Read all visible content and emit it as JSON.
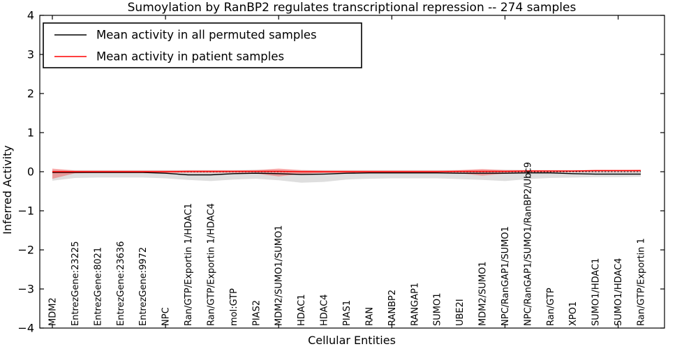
{
  "figure": {
    "title": "Sumoylation by RanBP2 regulates transcriptional repression -- 274 samples",
    "xlabel": "Cellular Entities",
    "ylabel": "Inferred Activity"
  },
  "chart_data": {
    "type": "line",
    "title": "Sumoylation by RanBP2 regulates transcriptional repression -- 274 samples",
    "xlabel": "Cellular Entities",
    "ylabel": "Inferred Activity",
    "ylim": [
      -4,
      4
    ],
    "yticks": [
      4,
      3,
      2,
      1,
      0,
      -1,
      -2,
      -3,
      -4
    ],
    "ytick_labels": [
      "4",
      "3",
      "2",
      "1",
      "0",
      "−1",
      "−2",
      "−3",
      "−4"
    ],
    "xtick_index": [
      0,
      5,
      10,
      15,
      20,
      25
    ],
    "grid": false,
    "legend_position": "upper left",
    "zero_reference_line": 0,
    "categories": [
      "MDM2",
      "EntrezGene:23225",
      "EntrezGene:8021",
      "EntrezGene:23636",
      "EntrezGene:9972",
      "NPC",
      "Ran/GTP/Exportin 1/HDAC1",
      "Ran/GTP/Exportin 1/HDAC4",
      "mol:GTP",
      "PIAS2",
      "MDM2/SUMO1/SUMO1",
      "HDAC1",
      "HDAC4",
      "PIAS1",
      "RAN",
      "RANBP2",
      "RANGAP1",
      "SUMO1",
      "UBE2I",
      "MDM2/SUMO1",
      "NPC/RanGAP1/SUMO1",
      "NPC/RanGAP1/SUMO1/RanBP2/Ubc9",
      "Ran/GTP",
      "XPO1",
      "SUMO1/HDAC1",
      "SUMO1/HDAC4",
      "Ran/GTP/Exportin 1"
    ],
    "series": [
      {
        "name": "Mean activity in all permuted samples",
        "color": "#000000",
        "line_style": "solid",
        "values": [
          -0.02,
          -0.02,
          -0.02,
          -0.02,
          -0.02,
          -0.04,
          -0.08,
          -0.08,
          -0.05,
          -0.04,
          -0.05,
          -0.07,
          -0.06,
          -0.04,
          -0.03,
          -0.03,
          -0.03,
          -0.03,
          -0.04,
          -0.04,
          -0.04,
          -0.03,
          -0.03,
          -0.05,
          -0.06,
          -0.06,
          -0.06
        ],
        "band": {
          "color": "rgba(0,0,0,0.13)",
          "upper": [
            0.05,
            0.04,
            0.04,
            0.04,
            0.04,
            0.04,
            0.04,
            0.04,
            0.04,
            0.05,
            0.05,
            0.04,
            0.04,
            0.04,
            0.04,
            0.04,
            0.04,
            0.04,
            0.04,
            0.05,
            0.05,
            0.04,
            0.04,
            0.04,
            0.04,
            0.04,
            0.04
          ],
          "lower": [
            -0.23,
            -0.16,
            -0.15,
            -0.15,
            -0.15,
            -0.17,
            -0.21,
            -0.24,
            -0.2,
            -0.18,
            -0.22,
            -0.28,
            -0.26,
            -0.2,
            -0.18,
            -0.17,
            -0.17,
            -0.17,
            -0.19,
            -0.21,
            -0.24,
            -0.19,
            -0.16,
            -0.15,
            -0.14,
            -0.14,
            -0.13
          ]
        }
      },
      {
        "name": "Mean activity in patient samples",
        "color": "#ff0000",
        "line_style": "solid",
        "values": [
          0.0,
          0.0,
          0.0,
          0.0,
          0.0,
          0.0,
          0.01,
          0.01,
          0.01,
          0.01,
          0.01,
          0.0,
          0.0,
          0.0,
          0.0,
          0.0,
          0.0,
          0.0,
          0.01,
          0.01,
          0.01,
          0.02,
          0.02,
          0.02,
          0.03,
          0.03,
          0.03
        ],
        "band": {
          "color": "rgba(255,0,0,0.30)",
          "upper": [
            0.08,
            0.03,
            0.03,
            0.03,
            0.03,
            0.03,
            0.03,
            0.03,
            0.03,
            0.04,
            0.08,
            0.04,
            0.03,
            0.03,
            0.03,
            0.03,
            0.03,
            0.03,
            0.04,
            0.07,
            0.04,
            0.04,
            0.03,
            0.03,
            0.04,
            0.04,
            0.05
          ],
          "lower": [
            -0.18,
            -0.04,
            -0.03,
            -0.03,
            -0.03,
            -0.03,
            -0.03,
            -0.03,
            -0.03,
            -0.05,
            -0.12,
            -0.06,
            -0.03,
            -0.03,
            -0.03,
            -0.03,
            -0.02,
            -0.02,
            -0.04,
            -0.1,
            -0.05,
            -0.03,
            -0.02,
            -0.01,
            -0.01,
            -0.01,
            -0.01
          ]
        }
      }
    ]
  }
}
